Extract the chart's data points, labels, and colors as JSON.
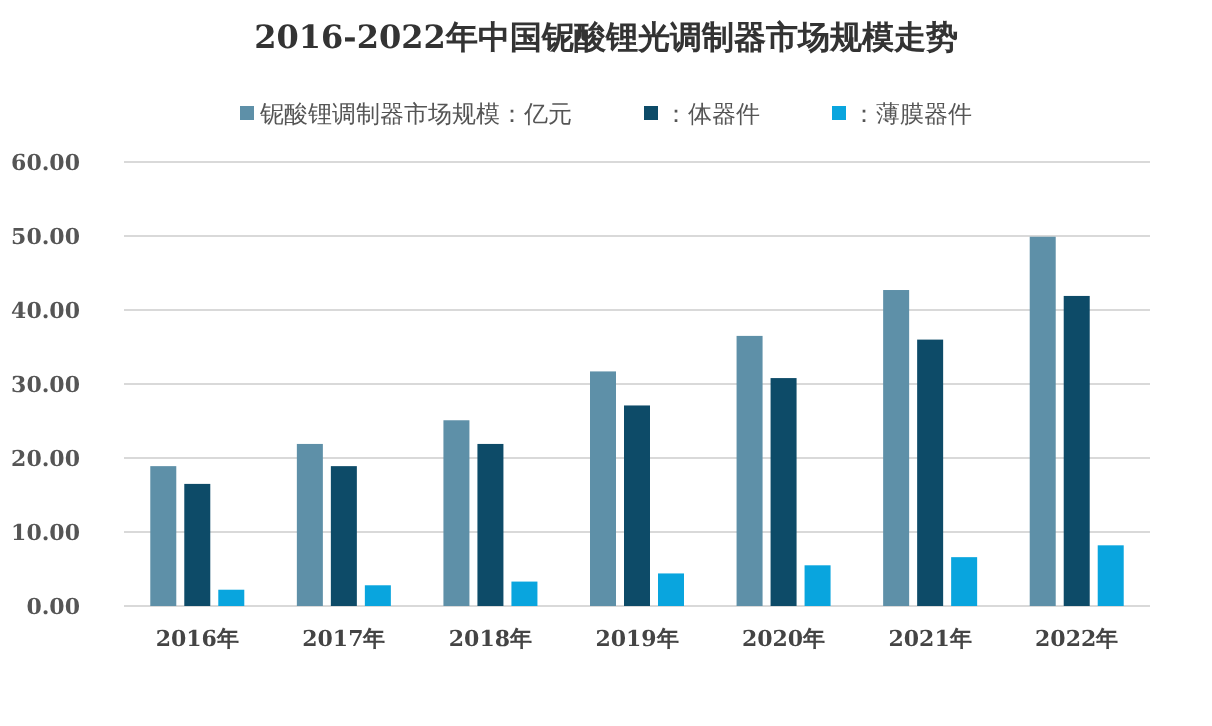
{
  "chart_data": {
    "type": "bar",
    "title": "2016-2022年中国铌酸锂光调制器市场规模走势",
    "categories": [
      "2016年",
      "2017年",
      "2018年",
      "2019年",
      "2020年",
      "2021年",
      "2022年"
    ],
    "series": [
      {
        "name": "铌酸锂调制器市场规模：亿元",
        "color": "#5e90a8",
        "values": [
          18.9,
          21.9,
          25.1,
          31.7,
          36.5,
          42.7,
          49.9
        ]
      },
      {
        "name": "：体器件",
        "color": "#0d4b68",
        "values": [
          16.5,
          18.9,
          21.9,
          27.1,
          30.8,
          36.0,
          41.9
        ]
      },
      {
        "name": "：薄膜器件",
        "color": "#09a5de",
        "values": [
          2.2,
          2.8,
          3.3,
          4.4,
          5.5,
          6.6,
          8.2
        ]
      }
    ],
    "ylim": [
      0,
      60
    ],
    "yticks": [
      {
        "value": 0,
        "label": "0.00"
      },
      {
        "value": 10,
        "label": "10.00"
      },
      {
        "value": 20,
        "label": "20.00"
      },
      {
        "value": 30,
        "label": "30.00"
      },
      {
        "value": 40,
        "label": "40.00"
      },
      {
        "value": 50,
        "label": "50.00"
      },
      {
        "value": 60,
        "label": "60.00"
      }
    ],
    "grid": "y",
    "legend": "top"
  }
}
